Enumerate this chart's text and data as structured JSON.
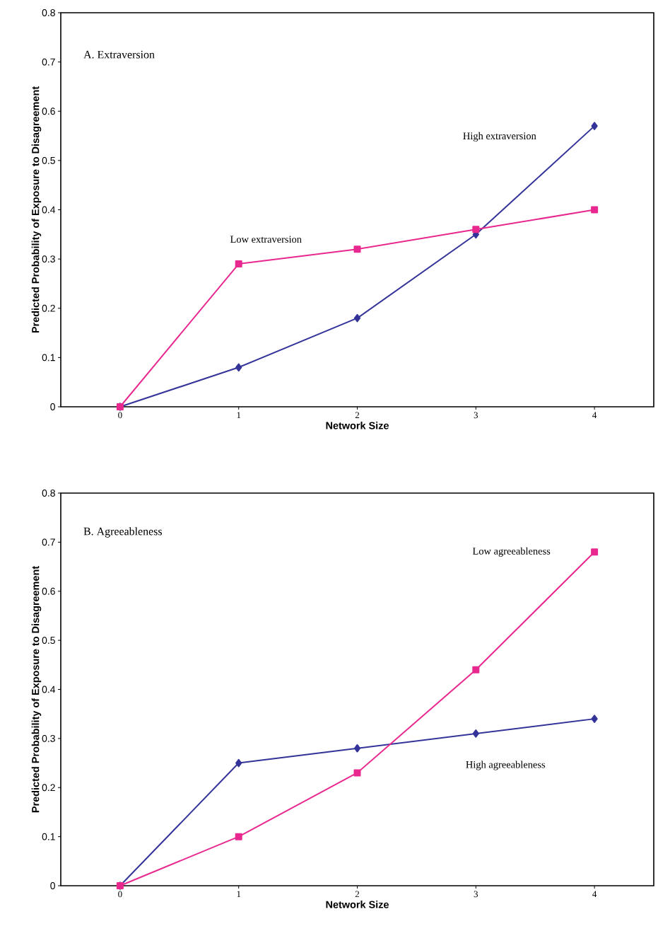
{
  "chart_data": [
    {
      "type": "line",
      "xlabel": "Network Size",
      "ylabel": "Predicted Probability of Exposure to Disagreement",
      "annotations": [
        "A. Extraversion"
      ],
      "categories": [
        "0",
        "1",
        "2",
        "3",
        "4"
      ],
      "ylim": [
        0,
        0.8
      ],
      "yticks": [
        0,
        0.1,
        0.2,
        0.3,
        0.4,
        0.5,
        0.6,
        0.7,
        0.8
      ],
      "series": [
        {
          "name": "High extraversion",
          "color": "#333399",
          "marker": "diamond",
          "values": [
            0,
            0.08,
            0.18,
            0.35,
            0.57
          ]
        },
        {
          "name": "Low extraversion",
          "color": "#e8288e",
          "marker": "square",
          "values": [
            0,
            0.29,
            0.32,
            0.36,
            0.4
          ]
        }
      ]
    },
    {
      "type": "line",
      "xlabel": "Network Size",
      "ylabel": "Predicted Probability of Exposure to Disagreement",
      "annotations": [
        "B. Agreeableness"
      ],
      "categories": [
        "0",
        "1",
        "2",
        "3",
        "4"
      ],
      "ylim": [
        0,
        0.8
      ],
      "yticks": [
        0,
        0.1,
        0.2,
        0.3,
        0.4,
        0.5,
        0.6,
        0.7,
        0.8
      ],
      "series": [
        {
          "name": "High agreeableness",
          "color": "#333399",
          "marker": "diamond",
          "values": [
            0,
            0.25,
            0.28,
            0.31,
            0.34
          ]
        },
        {
          "name": "Low agreeableness",
          "color": "#e8288e",
          "marker": "square",
          "values": [
            0,
            0.1,
            0.23,
            0.44,
            0.68
          ]
        }
      ]
    }
  ]
}
